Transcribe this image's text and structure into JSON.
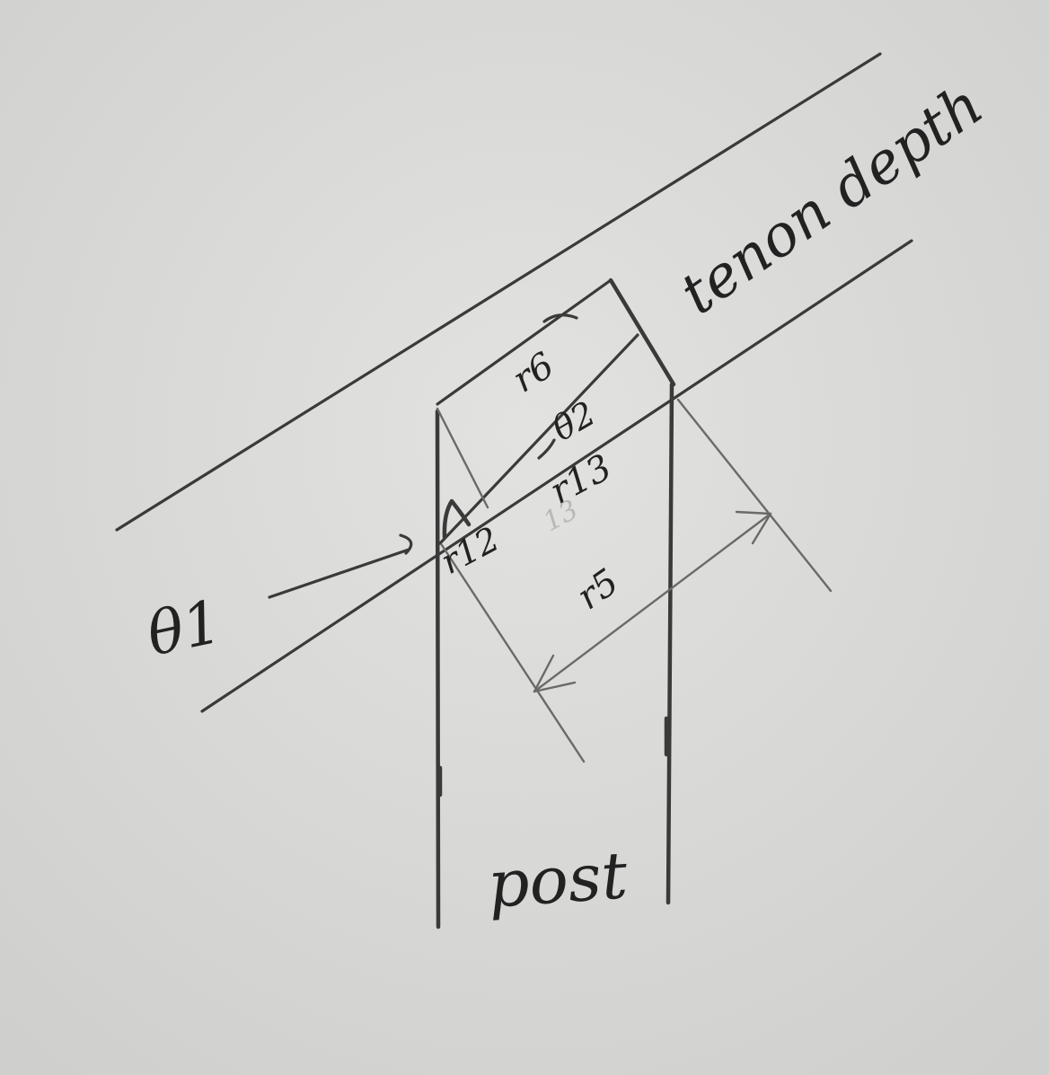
{
  "labels": {
    "tenon_depth": "tenon depth",
    "r6": "r6",
    "theta2": "θ2",
    "r13": "r13",
    "r13_ghost": "13",
    "r12": "r12",
    "r5": "r5",
    "theta1": "θ1",
    "post": "post"
  },
  "colors": {
    "paper": "#dcdcda",
    "ink": "#3a3a3a"
  }
}
